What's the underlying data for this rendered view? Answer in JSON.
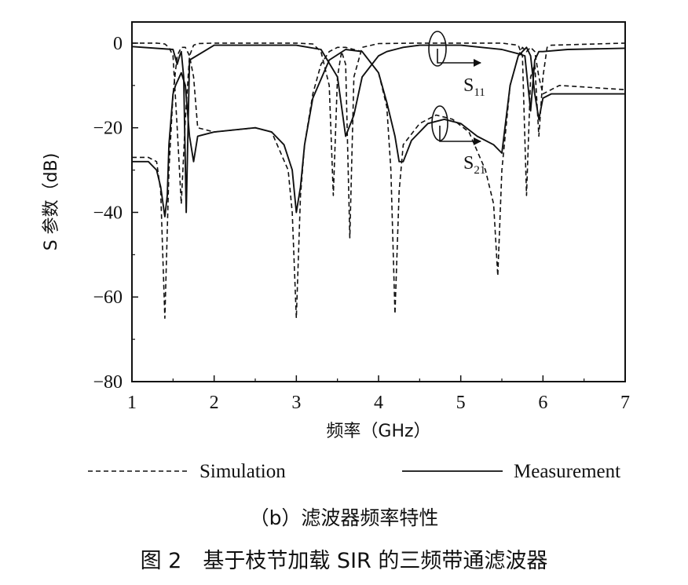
{
  "chart_data": {
    "type": "line",
    "xlabel": "频率（GHz）",
    "ylabel": "S 参数（dB)",
    "xlim": [
      1,
      7
    ],
    "ylim": [
      -80,
      5
    ],
    "xticks": [
      1,
      2,
      3,
      4,
      5,
      6,
      7
    ],
    "yticks": [
      0,
      -20,
      -40,
      -60,
      -80
    ],
    "legend": {
      "placement": "bottom",
      "simulation": "Simulation",
      "measurement": "Measurement"
    },
    "annotations": [
      {
        "text": "S",
        "sub": "11"
      },
      {
        "text": "S",
        "sub": "21"
      }
    ],
    "series": [
      {
        "name": "S11",
        "style": "dashed",
        "x": [
          1.0,
          1.3,
          1.4,
          1.45,
          1.5,
          1.55,
          1.6,
          1.65,
          1.7,
          1.75,
          1.8,
          2.0,
          3.0,
          3.2,
          3.3,
          3.4,
          3.45,
          3.5,
          3.55,
          3.6,
          3.65,
          3.7,
          3.8,
          4.0,
          4.5,
          5.5,
          5.7,
          5.75,
          5.8,
          5.85,
          5.9,
          5.95,
          6.0,
          6.05,
          6.1,
          7.0
        ],
        "y": [
          0,
          0,
          -0.2,
          -1,
          -3,
          -20,
          -38,
          -18,
          -3,
          -0.5,
          -0.1,
          0,
          0,
          -0.2,
          -2,
          -10,
          -36,
          -8,
          -2,
          -5,
          -46,
          -8,
          -1,
          -0.1,
          0,
          0,
          -0.5,
          -3,
          -36,
          -8,
          -5,
          -22,
          -8,
          -1,
          -0.5,
          0
        ]
      },
      {
        "name": "S21",
        "style": "dashed",
        "x": [
          1.0,
          1.2,
          1.3,
          1.35,
          1.4,
          1.45,
          1.5,
          1.55,
          1.6,
          1.65,
          1.7,
          1.75,
          1.8,
          2.0,
          2.5,
          2.7,
          2.9,
          2.95,
          3.0,
          3.05,
          3.1,
          3.2,
          3.3,
          3.4,
          3.5,
          3.6,
          3.8,
          4.0,
          4.1,
          4.15,
          4.2,
          4.25,
          4.3,
          4.5,
          4.7,
          4.9,
          5.1,
          5.3,
          5.4,
          5.45,
          5.5,
          5.6,
          5.7,
          5.75,
          5.8,
          5.85,
          5.9,
          5.95,
          6.0,
          6.2,
          7.0
        ],
        "y": [
          -27,
          -27,
          -28,
          -35,
          -65,
          -30,
          -12,
          -3,
          -1,
          -1,
          -3,
          -8,
          -20,
          -21,
          -20,
          -21,
          -30,
          -40,
          -65,
          -36,
          -24,
          -12,
          -5,
          -2,
          -1,
          -1,
          -2,
          -7,
          -15,
          -30,
          -64,
          -35,
          -24,
          -19,
          -17,
          -18,
          -21,
          -30,
          -38,
          -55,
          -30,
          -10,
          -3,
          -1,
          -2,
          -1,
          -2,
          -8,
          -12,
          -10,
          -11
        ]
      },
      {
        "name": "S11",
        "style": "solid",
        "x": [
          1.0,
          1.5,
          1.55,
          1.58,
          1.6,
          1.63,
          1.66,
          1.7,
          2.0,
          2.5,
          3.0,
          3.3,
          3.5,
          3.6,
          3.7,
          3.8,
          4.0,
          4.1,
          4.3,
          4.5,
          5.0,
          5.5,
          5.7,
          5.78,
          5.85,
          5.9,
          5.95,
          6.0,
          6.3,
          7.0
        ],
        "y": [
          -0.8,
          -1.5,
          -5,
          -3,
          -2,
          -8,
          -40,
          -4,
          -0.5,
          -0.5,
          -0.5,
          -1.5,
          -8,
          -22,
          -17,
          -8,
          -3,
          -2,
          -1,
          -0.5,
          -0.5,
          -1.5,
          -2.5,
          -3,
          -16,
          -4,
          -2,
          -2,
          -1.5,
          -1.2
        ]
      },
      {
        "name": "S21",
        "style": "solid",
        "x": [
          1.0,
          1.2,
          1.3,
          1.35,
          1.4,
          1.43,
          1.45,
          1.5,
          1.53,
          1.6,
          1.65,
          1.7,
          1.75,
          1.8,
          2.0,
          2.5,
          2.7,
          2.85,
          2.95,
          3.0,
          3.05,
          3.1,
          3.2,
          3.4,
          3.6,
          3.8,
          4.0,
          4.1,
          4.2,
          4.25,
          4.3,
          4.4,
          4.6,
          4.8,
          5.0,
          5.2,
          5.4,
          5.5,
          5.6,
          5.7,
          5.8,
          5.85,
          5.9,
          5.95,
          6.0,
          6.1,
          6.5,
          7.0
        ],
        "y": [
          -28,
          -28,
          -30,
          -34,
          -41,
          -36,
          -24,
          -12,
          -10,
          -7,
          -10,
          -22,
          -28,
          -22,
          -21,
          -20,
          -21,
          -24,
          -30,
          -40,
          -34,
          -24,
          -13,
          -4,
          -1.5,
          -2,
          -7,
          -14,
          -22,
          -28,
          -28,
          -23,
          -19,
          -18,
          -19,
          -22,
          -24,
          -26,
          -10,
          -3,
          -1,
          -3,
          -12,
          -18,
          -13,
          -12,
          -12,
          -12
        ]
      }
    ]
  },
  "captions": {
    "subcaption": "（b）滤波器频率特性",
    "figure": "图 2　基于枝节加载 SIR 的三频带通滤波器"
  }
}
